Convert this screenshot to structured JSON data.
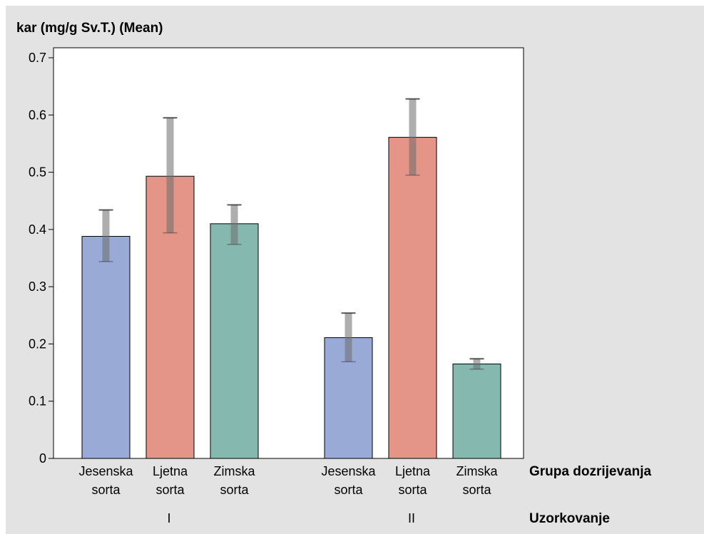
{
  "chart_data": {
    "type": "bar",
    "title": "kar (mg/g Sv.T.) (Mean)",
    "xlabel": "Grupa dozrijevanja",
    "group_axis_label": "Uzorkovanje",
    "ylim": [
      0,
      0.7
    ],
    "yticks": [
      "0",
      "0.1",
      "0.2",
      "0.3",
      "0.4",
      "0.5",
      "0.6",
      "0.7"
    ],
    "groups": [
      {
        "label": "I",
        "bars": [
          {
            "label_line1": "Jesenska",
            "label_line2": "sorta",
            "value": 0.388,
            "err_low": 0.344,
            "err_high": 0.434,
            "color": "#99aad6"
          },
          {
            "label_line1": "Ljetna",
            "label_line2": "sorta",
            "value": 0.493,
            "err_low": 0.394,
            "err_high": 0.595,
            "color": "#e49588"
          },
          {
            "label_line1": "Zimska",
            "label_line2": "sorta",
            "value": 0.41,
            "err_low": 0.374,
            "err_high": 0.443,
            "color": "#85b9b0"
          }
        ]
      },
      {
        "label": "II",
        "bars": [
          {
            "label_line1": "Jesenska",
            "label_line2": "sorta",
            "value": 0.211,
            "err_low": 0.169,
            "err_high": 0.254,
            "color": "#99aad6"
          },
          {
            "label_line1": "Ljetna",
            "label_line2": "sorta",
            "value": 0.561,
            "err_low": 0.495,
            "err_high": 0.628,
            "color": "#e49588"
          },
          {
            "label_line1": "Zimska",
            "label_line2": "sorta",
            "value": 0.165,
            "err_low": 0.156,
            "err_high": 0.174,
            "color": "#85b9b0"
          }
        ]
      }
    ],
    "grid": false,
    "legend": "none"
  }
}
